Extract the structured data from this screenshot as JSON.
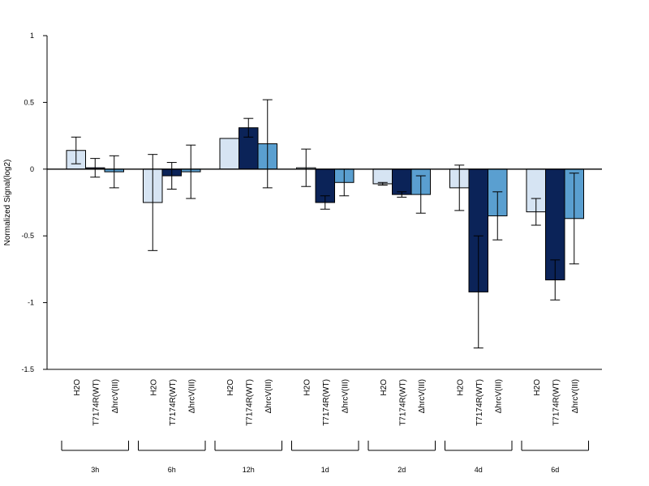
{
  "chart_data": {
    "type": "bar",
    "ylabel": "Normalized Signal(log2)",
    "ylim": [
      -1.5,
      1
    ],
    "yticks": [
      "1",
      "0.5",
      "0",
      "-0.5",
      "-1",
      "-1.5"
    ],
    "ytick_values": [
      1,
      0.5,
      0,
      -0.5,
      -1,
      -1.5
    ],
    "groups": [
      "3h",
      "6h",
      "12h",
      "1d",
      "2d",
      "4d",
      "6d"
    ],
    "conditions": [
      "H2O",
      "T7174R(WT)",
      "ΔhrcV(III)"
    ],
    "colors": [
      "#d6e4f3",
      "#0b2358",
      "#5a9fd0"
    ],
    "series": [
      {
        "values": [
          0.14,
          -0.25,
          0.23,
          0.01,
          -0.11,
          -0.14,
          -0.32
        ],
        "errors": [
          0.1,
          0.36,
          0.0,
          0.14,
          0.01,
          0.17,
          0.1
        ]
      },
      {
        "values": [
          0.01,
          -0.05,
          0.31,
          -0.25,
          -0.19,
          -0.92,
          -0.83
        ],
        "errors": [
          0.07,
          0.1,
          0.07,
          0.05,
          0.02,
          0.42,
          0.15
        ]
      },
      {
        "values": [
          -0.02,
          -0.02,
          0.19,
          -0.1,
          -0.19,
          -0.35,
          -0.37
        ],
        "errors": [
          0.12,
          0.2,
          0.33,
          0.1,
          0.14,
          0.18,
          0.34
        ]
      }
    ]
  }
}
